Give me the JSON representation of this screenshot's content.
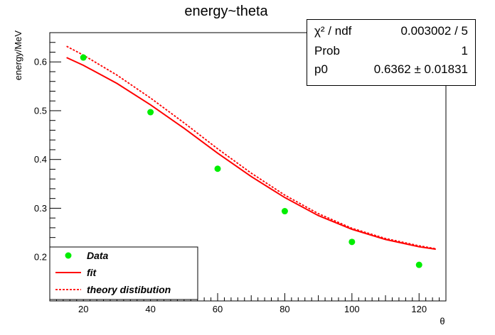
{
  "chart_data": {
    "type": "scatter",
    "title": "energy~theta",
    "xlabel": "θ",
    "ylabel": "energy/MeV",
    "xlim": [
      10,
      128
    ],
    "ylim": [
      0.11,
      0.66
    ],
    "xticks": [
      20,
      40,
      60,
      80,
      100,
      120
    ],
    "yticks": [
      0.2,
      0.3,
      0.4,
      0.5,
      0.6
    ],
    "grid": false,
    "legend_position": "bottom-left",
    "series": [
      {
        "name": "Data",
        "kind": "points",
        "color": "#00ee00",
        "x": [
          20,
          40,
          60,
          80,
          100,
          120
        ],
        "y": [
          0.609,
          0.497,
          0.381,
          0.294,
          0.231,
          0.184
        ]
      },
      {
        "name": "fit",
        "kind": "line",
        "style": "solid",
        "color": "#ff0000",
        "x": [
          15,
          20,
          30,
          40,
          50,
          60,
          70,
          80,
          90,
          100,
          110,
          120,
          125
        ],
        "y": [
          0.609,
          0.593,
          0.556,
          0.512,
          0.464,
          0.413,
          0.365,
          0.322,
          0.285,
          0.257,
          0.236,
          0.221,
          0.216
        ]
      },
      {
        "name": "theory distibution",
        "kind": "line",
        "style": "dashed",
        "color": "#ff0000",
        "x": [
          15,
          20,
          30,
          40,
          50,
          60,
          70,
          80,
          90,
          100,
          110,
          120,
          125
        ],
        "y": [
          0.632,
          0.614,
          0.573,
          0.526,
          0.475,
          0.422,
          0.372,
          0.327,
          0.289,
          0.259,
          0.238,
          0.223,
          0.217
        ]
      }
    ],
    "stats": [
      {
        "label": "χ² / ndf",
        "value": "0.003002 / 5"
      },
      {
        "label": "Prob",
        "value": "1"
      },
      {
        "label": "p0",
        "value": "0.6362 ± 0.01831"
      }
    ]
  }
}
